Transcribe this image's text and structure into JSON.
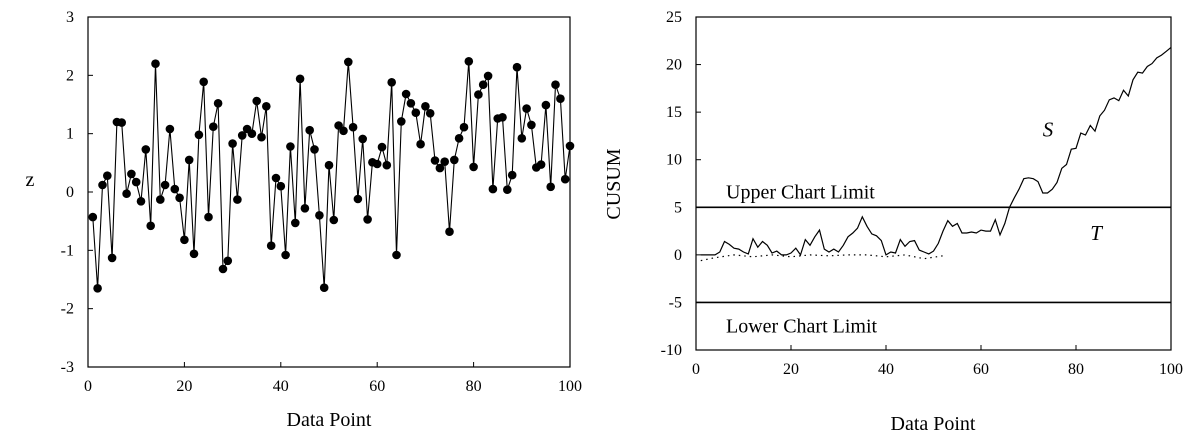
{
  "chart_data": [
    {
      "type": "scatter",
      "title": "",
      "xlabel": "Data Point",
      "ylabel": "z",
      "xlim": [
        0,
        100
      ],
      "ylim": [
        -3,
        3
      ],
      "xticks": [
        "0",
        "20",
        "40",
        "60",
        "80",
        "100"
      ],
      "yticks": [
        "-3",
        "-2",
        "-1",
        "0",
        "1",
        "2",
        "3"
      ],
      "grid": false,
      "markers": "filled-circles-connected",
      "series": [
        {
          "x": [
            1,
            2,
            3,
            4,
            5,
            6,
            7,
            8,
            9,
            10,
            11,
            12,
            13,
            14,
            15,
            16,
            17,
            18,
            19,
            20,
            21,
            22,
            23,
            24,
            25,
            26,
            27,
            28,
            29,
            30,
            31,
            32,
            33,
            34,
            35,
            36,
            37,
            38,
            39,
            40,
            41,
            42,
            43,
            44,
            45,
            46,
            47,
            48,
            49,
            50,
            51,
            52,
            53,
            54,
            55,
            56,
            57,
            58,
            59,
            60,
            61,
            62,
            63,
            64,
            65,
            66,
            67,
            68,
            69,
            70,
            71,
            72,
            73,
            74,
            75,
            76,
            77,
            78,
            79,
            80,
            81,
            82,
            83,
            84,
            85,
            86,
            87,
            88,
            89,
            90,
            91,
            92,
            93,
            94,
            95,
            96,
            97,
            98,
            99,
            100
          ],
          "y": [
            -0.43,
            -1.65,
            0.12,
            0.28,
            -1.13,
            1.2,
            1.19,
            -0.03,
            0.31,
            0.17,
            -0.16,
            0.73,
            -0.58,
            2.2,
            -0.13,
            0.12,
            1.08,
            0.05,
            -0.1,
            -0.82,
            0.55,
            -1.06,
            0.98,
            1.89,
            -0.43,
            1.12,
            1.52,
            -1.32,
            -1.18,
            0.83,
            -0.13,
            0.97,
            1.08,
            1.0,
            1.56,
            0.94,
            1.47,
            -0.92,
            0.24,
            0.1,
            -1.08,
            0.78,
            -0.53,
            1.94,
            -0.28,
            1.06,
            0.73,
            -0.4,
            -1.64,
            0.46,
            -0.48,
            1.14,
            1.05,
            2.23,
            1.11,
            -0.12,
            0.91,
            -0.47,
            0.51,
            0.48,
            0.77,
            0.46,
            1.88,
            -1.08,
            1.21,
            1.68,
            1.52,
            1.36,
            0.82,
            1.47,
            1.35,
            0.54,
            0.41,
            0.52,
            -0.68,
            0.55,
            0.92,
            1.11,
            2.24,
            0.43,
            1.67,
            1.84,
            1.99,
            0.05,
            1.26,
            1.28,
            0.04,
            0.29,
            2.14,
            0.92,
            1.43,
            1.15,
            0.42,
            0.47,
            1.49,
            0.09,
            1.84,
            1.6,
            0.22,
            0.79
          ]
        }
      ]
    },
    {
      "type": "line",
      "title": "",
      "xlabel": "Data Point",
      "ylabel": "CUSUM",
      "xlim": [
        0,
        100
      ],
      "ylim": [
        -10,
        25
      ],
      "xticks": [
        "0",
        "20",
        "40",
        "60",
        "80",
        "100"
      ],
      "yticks": [
        "-10",
        "-5",
        "0",
        "5",
        "10",
        "15",
        "20",
        "25"
      ],
      "grid": false,
      "series": [
        {
          "name": "S",
          "style": "solid",
          "x": [
            1,
            2,
            3,
            4,
            5,
            6,
            7,
            8,
            9,
            10,
            11,
            12,
            13,
            14,
            15,
            16,
            17,
            18,
            19,
            20,
            21,
            22,
            23,
            24,
            25,
            26,
            27,
            28,
            29,
            30,
            31,
            32,
            33,
            34,
            35,
            36,
            37,
            38,
            39,
            40,
            41,
            42,
            43,
            44,
            45,
            46,
            47,
            48,
            49,
            50,
            51,
            52,
            53,
            54,
            55,
            56,
            57,
            58,
            59,
            60,
            61,
            62,
            63,
            64,
            65,
            66,
            67,
            68,
            69,
            70,
            71,
            72,
            73,
            74,
            75,
            76,
            77,
            78,
            79,
            80,
            81,
            82,
            83,
            84,
            85,
            86,
            87,
            88,
            89,
            90,
            91,
            92,
            93,
            94,
            95,
            96,
            97,
            98,
            99,
            100
          ],
          "y": [
            0,
            0,
            0,
            0,
            0.3,
            1.4,
            1.1,
            0.7,
            0.6,
            0.3,
            0.1,
            1.7,
            0.8,
            1.4,
            1,
            0.2,
            0.4,
            0,
            0,
            0.2,
            0.7,
            0,
            1.6,
            1,
            1.9,
            2.6,
            0.6,
            0.3,
            0.6,
            0.3,
            1,
            1.9,
            2.3,
            2.8,
            4,
            3,
            2.2,
            2,
            1.5,
            0,
            0.3,
            0.2,
            1.6,
            0.9,
            1.4,
            1.5,
            0.5,
            0.3,
            0.1,
            0.4,
            1.2,
            2.5,
            3.6,
            3,
            3.3,
            2.3,
            2.3,
            2.4,
            2.3,
            2.6,
            2.5,
            2.5,
            3.7,
            2.1,
            3.3,
            5,
            6,
            6.9,
            8,
            8.1,
            8,
            7.7,
            6.5,
            6.5,
            6.9,
            7.6,
            9.1,
            9.5,
            11.1,
            11.2,
            12.8,
            12.6,
            13.6,
            13,
            14.6,
            15.2,
            16.3,
            16.5,
            16.2,
            17.3,
            16.7,
            18.4,
            19.2,
            19.1,
            19.8,
            20.1,
            20.7,
            21.0,
            21.4,
            21.8
          ]
        },
        {
          "name": "T",
          "style": "dotted",
          "x": [
            1,
            4,
            8,
            12,
            16,
            20,
            24,
            28,
            32,
            36,
            40,
            44,
            48,
            52
          ],
          "y": [
            -0.6,
            -0.3,
            0,
            -0.2,
            0,
            -0.2,
            0,
            -0.1,
            0,
            0,
            -0.2,
            0,
            -0.4,
            -0.1
          ]
        }
      ],
      "reference_lines": [
        {
          "y": 5,
          "label": "Upper Chart Limit"
        },
        {
          "y": -5,
          "label": "Lower Chart Limit"
        }
      ],
      "annotations": [
        "S",
        "T"
      ]
    }
  ]
}
